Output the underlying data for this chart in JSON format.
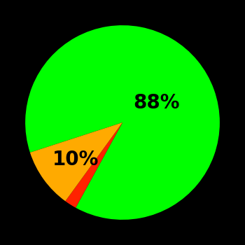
{
  "slices": [
    88,
    2,
    10
  ],
  "colors": [
    "#00ff00",
    "#ff2200",
    "#ffaa00"
  ],
  "labels": [
    "88%",
    "",
    "10%"
  ],
  "background_color": "#000000",
  "label_fontsize": 20,
  "label_fontweight": "bold",
  "startangle": 198,
  "figsize": [
    3.5,
    3.5
  ],
  "dpi": 100
}
